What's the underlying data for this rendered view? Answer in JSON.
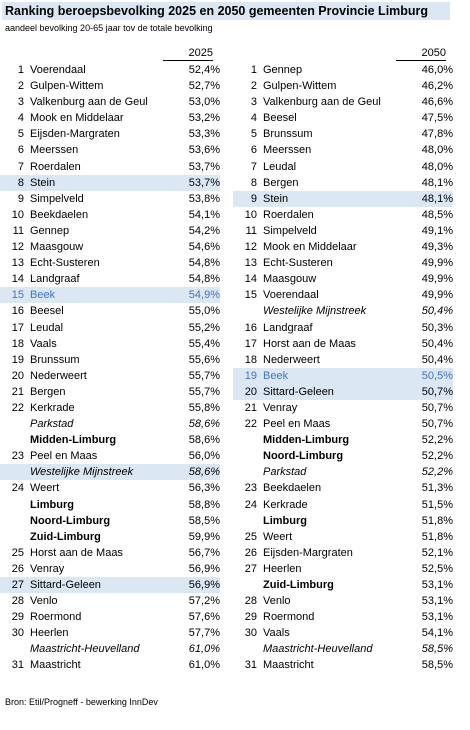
{
  "title": "Ranking beroepsbevolking 2025 en 2050 gemeenten Provincie Limburg",
  "subtitle": "aandeel bevolking 20-65 jaar tov de totale bevolking",
  "footer": "Bron: Etil/Progneff - bewerking InnDev",
  "left_header": "2025",
  "right_header": "2050",
  "left_rows": [
    {
      "rank": "1",
      "name": "Voerendaal",
      "value": "52,4%",
      "style": ""
    },
    {
      "rank": "2",
      "name": "Gulpen-Wittem",
      "value": "52,7%",
      "style": ""
    },
    {
      "rank": "3",
      "name": "Valkenburg aan de Geul",
      "value": "53,0%",
      "style": ""
    },
    {
      "rank": "4",
      "name": "Mook en Middelaar",
      "value": "53,2%",
      "style": ""
    },
    {
      "rank": "5",
      "name": "Eijsden-Margraten",
      "value": "53,3%",
      "style": ""
    },
    {
      "rank": "6",
      "name": "Meerssen",
      "value": "53,6%",
      "style": ""
    },
    {
      "rank": "7",
      "name": "Roerdalen",
      "value": "53,7%",
      "style": ""
    },
    {
      "rank": "8",
      "name": "Stein",
      "value": "53,7%",
      "style": "hl2"
    },
    {
      "rank": "9",
      "name": "Simpelveld",
      "value": "53,8%",
      "style": ""
    },
    {
      "rank": "10",
      "name": "Beekdaelen",
      "value": "54,1%",
      "style": ""
    },
    {
      "rank": "11",
      "name": "Gennep",
      "value": "54,2%",
      "style": ""
    },
    {
      "rank": "12",
      "name": "Maasgouw",
      "value": "54,6%",
      "style": ""
    },
    {
      "rank": "13",
      "name": "Echt-Susteren",
      "value": "54,8%",
      "style": ""
    },
    {
      "rank": "14",
      "name": "Landgraaf",
      "value": "54,8%",
      "style": ""
    },
    {
      "rank": "15",
      "name": "Beek",
      "value": "54,9%",
      "style": "hl"
    },
    {
      "rank": "16",
      "name": "Beesel",
      "value": "55,0%",
      "style": ""
    },
    {
      "rank": "17",
      "name": "Leudal",
      "value": "55,2%",
      "style": ""
    },
    {
      "rank": "18",
      "name": "Vaals",
      "value": "55,4%",
      "style": ""
    },
    {
      "rank": "19",
      "name": "Brunssum",
      "value": "55,6%",
      "style": ""
    },
    {
      "rank": "20",
      "name": "Nederweert",
      "value": "55,7%",
      "style": ""
    },
    {
      "rank": "21",
      "name": "Bergen",
      "value": "55,7%",
      "style": ""
    },
    {
      "rank": "22",
      "name": "Kerkrade",
      "value": "55,8%",
      "style": ""
    },
    {
      "rank": "",
      "name": "Parkstad",
      "value": "58,6%",
      "style": "ital"
    },
    {
      "rank": "",
      "name": "Midden-Limburg",
      "value": "58,6%",
      "style": "bold"
    },
    {
      "rank": "23",
      "name": "Peel en Maas",
      "value": "56,0%",
      "style": ""
    },
    {
      "rank": "",
      "name": "Westelijke Mijnstreek",
      "value": "58,6%",
      "style": "ital hl2"
    },
    {
      "rank": "24",
      "name": "Weert",
      "value": "56,3%",
      "style": ""
    },
    {
      "rank": "",
      "name": "Limburg",
      "value": "58,8%",
      "style": "bold"
    },
    {
      "rank": "",
      "name": "Noord-Limburg",
      "value": "58,5%",
      "style": "bold"
    },
    {
      "rank": "",
      "name": "Zuid-Limburg",
      "value": "59,9%",
      "style": "bold"
    },
    {
      "rank": "25",
      "name": "Horst aan de Maas",
      "value": "56,7%",
      "style": ""
    },
    {
      "rank": "26",
      "name": "Venray",
      "value": "56,9%",
      "style": ""
    },
    {
      "rank": "27",
      "name": "Sittard-Geleen",
      "value": "56,9%",
      "style": "hl2"
    },
    {
      "rank": "28",
      "name": "Venlo",
      "value": "57,2%",
      "style": ""
    },
    {
      "rank": "29",
      "name": "Roermond",
      "value": "57,6%",
      "style": ""
    },
    {
      "rank": "30",
      "name": "Heerlen",
      "value": "57,7%",
      "style": ""
    },
    {
      "rank": "",
      "name": "Maastricht-Heuvelland",
      "value": "61,0%",
      "style": "ital"
    },
    {
      "rank": "31",
      "name": "Maastricht",
      "value": "61,0%",
      "style": ""
    }
  ],
  "right_rows": [
    {
      "rank": "1",
      "name": "Gennep",
      "value": "46,0%",
      "style": ""
    },
    {
      "rank": "2",
      "name": "Gulpen-Wittem",
      "value": "46,2%",
      "style": ""
    },
    {
      "rank": "3",
      "name": "Valkenburg aan de Geul",
      "value": "46,6%",
      "style": ""
    },
    {
      "rank": "4",
      "name": "Beesel",
      "value": "47,5%",
      "style": ""
    },
    {
      "rank": "5",
      "name": "Brunssum",
      "value": "47,8%",
      "style": ""
    },
    {
      "rank": "6",
      "name": "Meerssen",
      "value": "48,0%",
      "style": ""
    },
    {
      "rank": "7",
      "name": "Leudal",
      "value": "48,0%",
      "style": ""
    },
    {
      "rank": "8",
      "name": "Bergen",
      "value": "48,1%",
      "style": ""
    },
    {
      "rank": "9",
      "name": "Stein",
      "value": "48,1%",
      "style": "hl2"
    },
    {
      "rank": "10",
      "name": "Roerdalen",
      "value": "48,5%",
      "style": ""
    },
    {
      "rank": "11",
      "name": "Simpelveld",
      "value": "49,1%",
      "style": ""
    },
    {
      "rank": "12",
      "name": "Mook en Middelaar",
      "value": "49,3%",
      "style": ""
    },
    {
      "rank": "13",
      "name": "Echt-Susteren",
      "value": "49,9%",
      "style": ""
    },
    {
      "rank": "14",
      "name": "Maasgouw",
      "value": "49,9%",
      "style": ""
    },
    {
      "rank": "15",
      "name": "Voerendaal",
      "value": "49,9%",
      "style": ""
    },
    {
      "rank": "",
      "name": "Westelijke Mijnstreek",
      "value": "50,4%",
      "style": "ital"
    },
    {
      "rank": "16",
      "name": "Landgraaf",
      "value": "50,3%",
      "style": ""
    },
    {
      "rank": "17",
      "name": "Horst aan de Maas",
      "value": "50,4%",
      "style": ""
    },
    {
      "rank": "18",
      "name": "Nederweert",
      "value": "50,4%",
      "style": ""
    },
    {
      "rank": "19",
      "name": "Beek",
      "value": "50,5%",
      "style": "hl"
    },
    {
      "rank": "20",
      "name": "Sittard-Geleen",
      "value": "50,7%",
      "style": "hl2"
    },
    {
      "rank": "21",
      "name": "Venray",
      "value": "50,7%",
      "style": ""
    },
    {
      "rank": "22",
      "name": "Peel en Maas",
      "value": "50,7%",
      "style": ""
    },
    {
      "rank": "",
      "name": "Midden-Limburg",
      "value": "52,2%",
      "style": "bold"
    },
    {
      "rank": "",
      "name": "Noord-Limburg",
      "value": "52,2%",
      "style": "bold"
    },
    {
      "rank": "",
      "name": "Parkstad",
      "value": "52,2%",
      "style": "ital"
    },
    {
      "rank": "23",
      "name": "Beekdaelen",
      "value": "51,3%",
      "style": ""
    },
    {
      "rank": "24",
      "name": "Kerkrade",
      "value": "51,5%",
      "style": ""
    },
    {
      "rank": "",
      "name": "Limburg",
      "value": "51,8%",
      "style": "bold"
    },
    {
      "rank": "25",
      "name": "Weert",
      "value": "51,8%",
      "style": ""
    },
    {
      "rank": "26",
      "name": "Eijsden-Margraten",
      "value": "52,1%",
      "style": ""
    },
    {
      "rank": "27",
      "name": "Heerlen",
      "value": "52,5%",
      "style": ""
    },
    {
      "rank": "",
      "name": "Zuid-Limburg",
      "value": "53,1%",
      "style": "bold"
    },
    {
      "rank": "28",
      "name": "Venlo",
      "value": "53,1%",
      "style": ""
    },
    {
      "rank": "29",
      "name": "Roermond",
      "value": "53,1%",
      "style": ""
    },
    {
      "rank": "30",
      "name": "Vaals",
      "value": "54,1%",
      "style": ""
    },
    {
      "rank": "",
      "name": "Maastricht-Heuvelland",
      "value": "58,5%",
      "style": "ital"
    },
    {
      "rank": "31",
      "name": "Maastricht",
      "value": "58,5%",
      "style": ""
    }
  ]
}
